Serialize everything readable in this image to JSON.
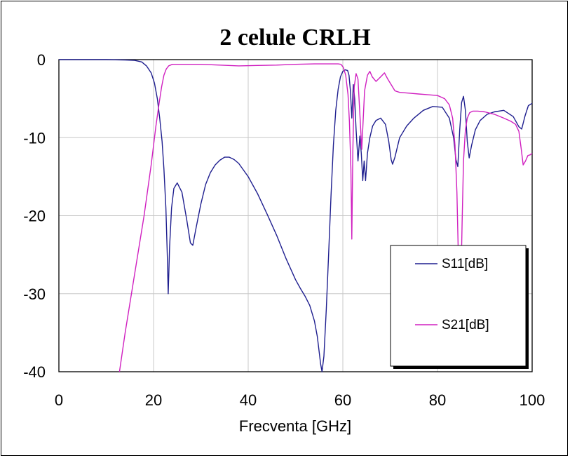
{
  "chart_data": {
    "type": "line",
    "title": "2 celule CRLH",
    "xlabel": "Frecventa [GHz]",
    "ylabel": "",
    "xlim": [
      0,
      100
    ],
    "ylim": [
      -40,
      0
    ],
    "xticks": [
      "0",
      "20",
      "40",
      "60",
      "80",
      "100"
    ],
    "yticks": [
      "0",
      "-10",
      "-20",
      "-30",
      "-40"
    ],
    "grid": true,
    "legend_position": "bottom-right",
    "series": [
      {
        "name": "S11[dB]",
        "color": "#1f1f8f",
        "x": [
          0,
          10,
          14,
          16,
          17.5,
          18.5,
          19.5,
          20.2,
          20.8,
          21.3,
          21.8,
          22.2,
          22.6,
          22.9,
          23.1,
          23.4,
          23.8,
          24.3,
          25,
          26,
          27,
          27.8,
          28.3,
          29,
          30,
          31,
          32,
          33,
          34,
          35,
          36,
          37,
          38,
          40,
          42,
          44,
          46,
          48,
          50,
          51,
          52,
          53,
          54,
          54.6,
          55,
          55.3,
          55.6,
          56,
          56.5,
          57,
          57.5,
          58,
          58.5,
          59,
          59.5,
          60,
          60.5,
          61,
          61.3,
          61.6,
          61.9,
          62.2,
          62.5,
          62.8,
          63.2,
          63.6,
          63.9,
          64.2,
          64.5,
          64.8,
          65.2,
          65.7,
          66.3,
          67,
          68,
          69,
          69.7,
          70.2,
          70.5,
          71,
          72,
          73.5,
          75,
          77,
          79,
          81,
          82.5,
          83.4,
          83.9,
          84.3,
          84.7,
          85.1,
          85.5,
          85.9,
          86.3,
          86.7,
          87.2,
          88,
          89,
          90.5,
          92,
          94,
          96,
          97.2,
          97.8,
          98.5,
          99.2,
          100
        ],
        "values": [
          0,
          0,
          -0.05,
          -0.1,
          -0.3,
          -0.8,
          -1.7,
          -3,
          -5,
          -7.5,
          -10.5,
          -14,
          -19,
          -25,
          -30,
          -24,
          -19,
          -16.5,
          -15.8,
          -17,
          -20.5,
          -23.5,
          -23.8,
          -21.5,
          -18.5,
          -16,
          -14.5,
          -13.5,
          -12.9,
          -12.5,
          -12.5,
          -12.8,
          -13.3,
          -15,
          -17.2,
          -19.8,
          -22.5,
          -25.5,
          -28.2,
          -29.3,
          -30.3,
          -31.5,
          -33.5,
          -35.5,
          -37.5,
          -39,
          -40,
          -38,
          -32,
          -25,
          -17.5,
          -11,
          -6.5,
          -3.8,
          -2.2,
          -1.5,
          -1.3,
          -1.4,
          -2,
          -4,
          -7.5,
          -3.2,
          -5,
          -9,
          -13,
          -9.8,
          -12,
          -15.5,
          -13,
          -15.5,
          -12,
          -10,
          -8.5,
          -7.8,
          -7.5,
          -8.3,
          -10.5,
          -12.8,
          -13.4,
          -12.5,
          -10,
          -8.5,
          -7.5,
          -6.5,
          -6,
          -6.1,
          -7.5,
          -10,
          -12.8,
          -13.7,
          -9,
          -5.5,
          -4.7,
          -6.5,
          -10.5,
          -12.6,
          -11,
          -9,
          -7.8,
          -7,
          -6.7,
          -6.5,
          -7.3,
          -8.6,
          -8.9,
          -7.2,
          -5.9,
          -5.6
        ]
      },
      {
        "name": "S21[dB]",
        "color": "#d020c0",
        "x": [
          12.8,
          14,
          16,
          18,
          19.5,
          20.5,
          21.2,
          21.7,
          22.2,
          22.7,
          23.2,
          24,
          26,
          30,
          34,
          38,
          42,
          46,
          50,
          54,
          56,
          58,
          59,
          59.6,
          60.1,
          60.6,
          61.1,
          61.4,
          61.7,
          61.9,
          62.1,
          62.4,
          62.8,
          63.2,
          63.6,
          64,
          64.6,
          65.2,
          65.7,
          66.2,
          67,
          68,
          68.8,
          69.5,
          70.2,
          71,
          72,
          74,
          76,
          78,
          80,
          81.5,
          82.5,
          83.2,
          83.7,
          84.1,
          84.4,
          84.7,
          85,
          85.2,
          85.5,
          85.9,
          86.3,
          86.8,
          87.5,
          88.5,
          90,
          92,
          94,
          95.5,
          96.5,
          97.2,
          97.7,
          98.1,
          98.6,
          99.1,
          99.6,
          100
        ],
        "values": [
          -40,
          -35,
          -27.5,
          -20,
          -13.5,
          -8.5,
          -5.5,
          -3.5,
          -2,
          -1.2,
          -0.8,
          -0.6,
          -0.6,
          -0.6,
          -0.7,
          -0.8,
          -0.75,
          -0.7,
          -0.6,
          -0.55,
          -0.55,
          -0.55,
          -0.55,
          -0.6,
          -1,
          -2,
          -4.5,
          -8,
          -14,
          -23,
          -12,
          -3.5,
          -1.8,
          -2.5,
          -7,
          -11.5,
          -4,
          -2,
          -1.5,
          -2.2,
          -2.8,
          -2.2,
          -1.7,
          -2.5,
          -3.2,
          -4,
          -4.2,
          -4.3,
          -4.4,
          -4.5,
          -4.6,
          -5,
          -5.8,
          -7.5,
          -11,
          -17,
          -25,
          -30,
          -27,
          -21,
          -13,
          -9,
          -7.5,
          -6.8,
          -6.6,
          -6.6,
          -6.7,
          -7,
          -7.5,
          -7.9,
          -8.3,
          -9.2,
          -11.5,
          -13.5,
          -13,
          -12.3,
          -12.2,
          -12
        ]
      }
    ]
  }
}
